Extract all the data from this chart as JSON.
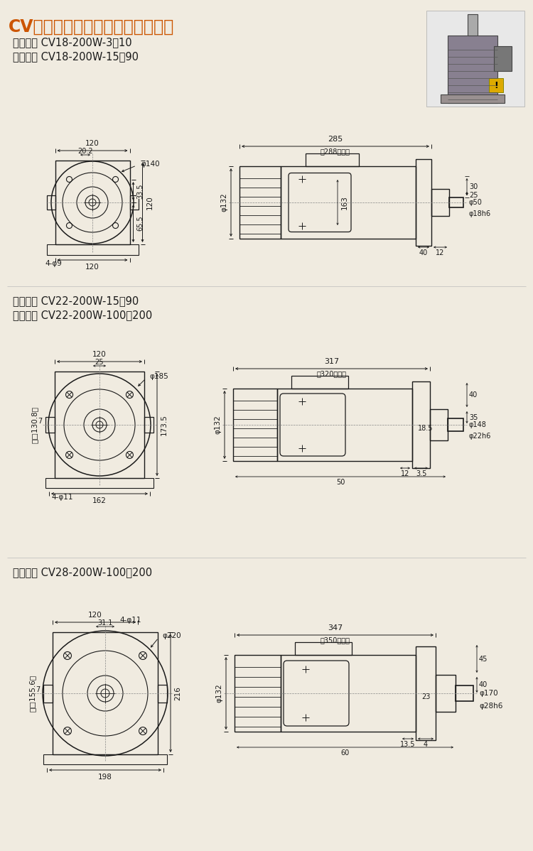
{
  "title": "CV型卧式三相（刹车）马达减速机",
  "sub1a": "标准型： CV18-200W-3～10",
  "sub1b": "缩框型： CV18-200W-15～90",
  "sub2a": "标准型： CV22-200W-15～90",
  "sub2b": "缩框型： CV22-200W-100～200",
  "sub3a": "标准型： CV28-200W-100～200",
  "bg": "#f0ebe0",
  "lc": "#1a1a1a",
  "tc": "#cc5500",
  "dc": "#1a1a1a",
  "gray": "#888888"
}
